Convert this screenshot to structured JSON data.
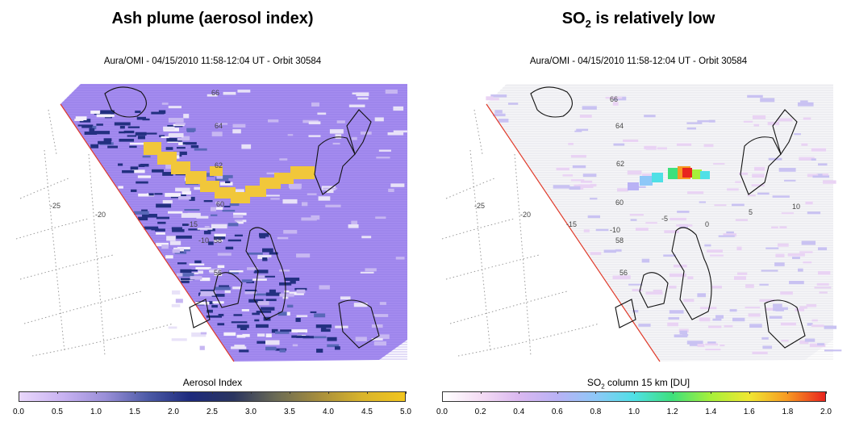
{
  "left": {
    "heading": "Ash plume (aerosol index)",
    "subtitle": "Aura/OMI - 04/15/2010 11:58-12:04 UT - Orbit 30584",
    "map_labels": [
      "66",
      "64",
      "62",
      "60",
      "58",
      "56",
      "-25",
      "-20",
      "-15",
      "-10"
    ],
    "colorbar": {
      "title": "Aerosol Index",
      "ticks": [
        "0.0",
        "0.5",
        "1.0",
        "1.5",
        "2.0",
        "2.5",
        "3.0",
        "3.5",
        "4.0",
        "4.5",
        "5.0"
      ],
      "colors": [
        "#e9d7fb",
        "#c9b3f2",
        "#9a8fd8",
        "#4c5aa6",
        "#1d2a7c",
        "#2a3560",
        "#6b6b55",
        "#a78e3d",
        "#d9b42c",
        "#f2c51e"
      ]
    },
    "swath_color": "#a58cf0",
    "plume_color": "#f1c73a"
  },
  "right": {
    "heading_main": "SO",
    "heading_sub": "2",
    "heading_rest": " is relatively low",
    "subtitle": "Aura/OMI - 04/15/2010 11:58-12:04 UT - Orbit 30584",
    "map_labels": [
      "66",
      "64",
      "62",
      "60",
      "58",
      "56",
      "-25",
      "-20",
      "-15",
      "-10",
      "-5",
      "0",
      "5",
      "10"
    ],
    "colorbar": {
      "title_main": "SO",
      "title_sub": "2",
      "title_rest": " column 15 km [DU]",
      "ticks": [
        "0.0",
        "0.2",
        "0.4",
        "0.6",
        "0.8",
        "1.0",
        "1.2",
        "1.4",
        "1.6",
        "1.8",
        "2.0"
      ],
      "colors": [
        "#ffffff",
        "#f4dcf4",
        "#dab8f0",
        "#b9b2f5",
        "#8ec8f8",
        "#4fe0e6",
        "#3ee07c",
        "#a6f03a",
        "#f0e832",
        "#f79a22",
        "#e8241e"
      ]
    }
  }
}
